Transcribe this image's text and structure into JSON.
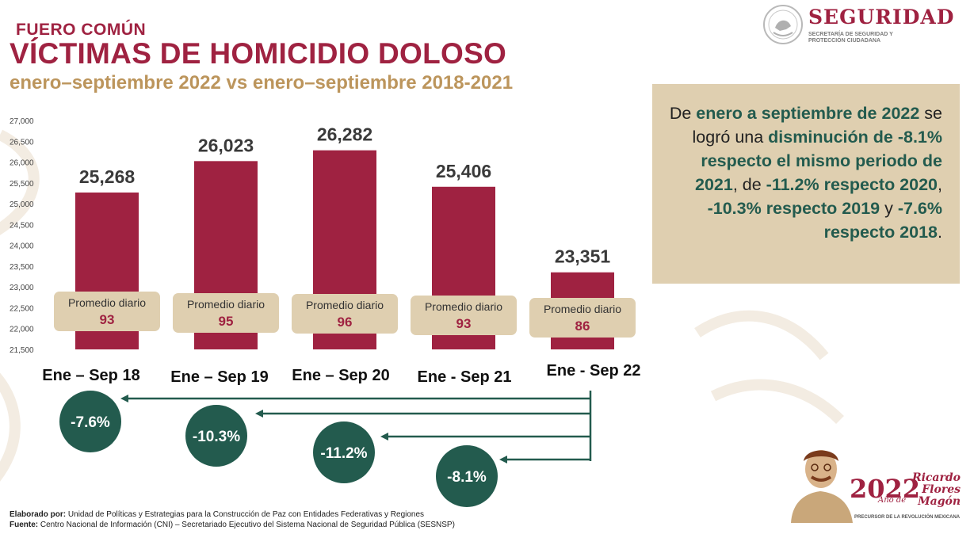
{
  "header": {
    "kicker": "FUERO COMÚN",
    "title": "VÍCTIMAS DE HOMICIDIO DOLOSO",
    "subtitle": "enero–septiembre 2022 vs enero–septiembre 2018-2021"
  },
  "logo": {
    "name": "SEGURIDAD",
    "subtitle": "SECRETARÍA DE SEGURIDAD Y PROTECCIÓN CIUDADANA"
  },
  "summary": {
    "segments": [
      {
        "text": "De ",
        "bold": false
      },
      {
        "text": "enero a septiembre de 2022",
        "bold": true
      },
      {
        "text": " se logró una ",
        "bold": false
      },
      {
        "text": "disminución de -8.1% respecto el mismo periodo de 2021",
        "bold": true
      },
      {
        "text": ", de ",
        "bold": false
      },
      {
        "text": "-11.2% respecto 2020",
        "bold": true
      },
      {
        "text": ", ",
        "bold": false
      },
      {
        "text": "-10.3% respecto 2019",
        "bold": true
      },
      {
        "text": " y ",
        "bold": false
      },
      {
        "text": "-7.6% respecto 2018",
        "bold": true
      },
      {
        "text": ".",
        "bold": false
      }
    ]
  },
  "chart_data": {
    "type": "bar",
    "categories": [
      "Ene – Sep 18",
      "Ene – Sep 19",
      "Ene – Sep 20",
      "Ene - Sep 21",
      "Ene - Sep 22"
    ],
    "values": [
      25268,
      26023,
      26282,
      25406,
      23351
    ],
    "value_labels": [
      "25,268",
      "26,023",
      "26,282",
      "25,406",
      "23,351"
    ],
    "ylim": [
      21500,
      27000
    ],
    "yticks": [
      21500,
      22000,
      22500,
      23000,
      23500,
      24000,
      24500,
      25000,
      25500,
      26000,
      26500,
      27000
    ],
    "ytick_labels": [
      "21,500",
      "22,000",
      "22,500",
      "23,000",
      "23,500",
      "24,000",
      "24,500",
      "25,000",
      "25,500",
      "26,000",
      "26,500",
      "27,000"
    ],
    "daily_average_label": "Promedio diario",
    "daily_averages": [
      "93",
      "95",
      "96",
      "93",
      "86"
    ],
    "comparisons": [
      {
        "target": "Ene – Sep 18",
        "label": "-7.6%"
      },
      {
        "target": "Ene – Sep 19",
        "label": "-10.3%"
      },
      {
        "target": "Ene – Sep 20",
        "label": "-11.2%"
      },
      {
        "target": "Ene - Sep 21",
        "label": "-8.1%"
      }
    ],
    "grid": false,
    "colors": {
      "bar": "#9f2241",
      "box": "#dfcfb0",
      "circle": "#235b4e",
      "axis_text": "#444444"
    }
  },
  "footer": {
    "elaborado_label": "Elaborado por:",
    "elaborado_text": "Unidad de Políticas y Estrategias para la Construcción de Paz con Entidades Federativas y Regiones",
    "fuente_label": "Fuente:",
    "fuente_text": "Centro Nacional de Información (CNI) – Secretariado Ejecutivo del Sistema Nacional de Seguridad Pública (SESNSP)"
  },
  "brand": {
    "year": "2022",
    "name": "Ricardo Flores Magón",
    "ano": "Año de",
    "tagline": "PRECURSOR DE LA REVOLUCIÓN MEXICANA"
  }
}
